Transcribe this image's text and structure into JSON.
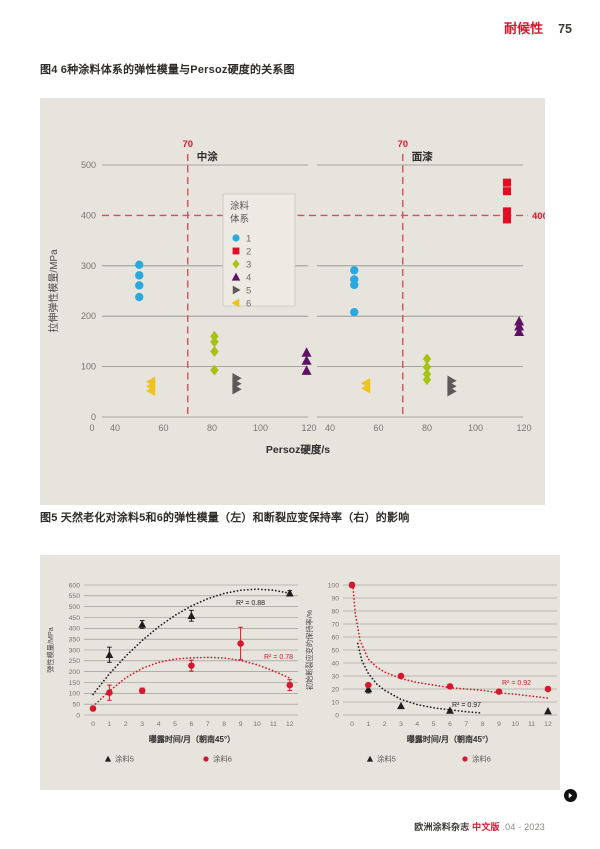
{
  "page": {
    "header": {
      "section": "耐候性",
      "page_number": "75"
    },
    "fig4_title": "图4 6种涂料体系的弹性模量与Persoz硬度的关系图",
    "fig5_title": "图5 天然老化对涂料5和6的弹性模量（左）和断裂应变保持率（右）的影响",
    "footer": {
      "journal": "欧洲涂料杂志",
      "edition": "中文版",
      "issue": ".04 - 2023"
    },
    "next_button_icon": "arrow-right",
    "colors": {
      "accent_red": "#d6182f",
      "dashed_red": "#d4505a",
      "chart_bg": "#e6e4dc",
      "grid": "#8f8e88",
      "tick_text": "#76756f",
      "dark_text": "#2e2d2b",
      "legend_bg": "#eceae2",
      "legend_border": "#c8c6bd"
    }
  },
  "chart_data": [
    {
      "id": "fig4",
      "type": "scatter",
      "xlabel": "Persoz硬度/s",
      "ylabel": "拉伸弹性模量/MPa",
      "ylim": [
        0,
        500
      ],
      "yticks": [
        0,
        100,
        200,
        300,
        400,
        500
      ],
      "hline": {
        "y": 400,
        "label": "400"
      },
      "panels": [
        {
          "title": "中涂",
          "xticks": [
            0,
            40,
            60,
            80,
            100,
            120
          ],
          "vline_x": 70,
          "vline_label": "70"
        },
        {
          "title": "面漆",
          "xticks": [
            40,
            60,
            80,
            100,
            120
          ],
          "vline_x": 70,
          "vline_label": "70"
        }
      ],
      "legend_title_lines": [
        "涂料",
        "体系"
      ],
      "series": [
        {
          "name": "1",
          "marker": "circle",
          "color": "#2aa9de",
          "panel_points": [
            [
              [
                50,
                302
              ],
              [
                50,
                281
              ],
              [
                50,
                261
              ],
              [
                50,
                238
              ]
            ],
            [
              [
                50,
                291
              ],
              [
                50,
                273
              ],
              [
                50,
                262
              ],
              [
                50,
                208
              ]
            ]
          ]
        },
        {
          "name": "2",
          "marker": "square",
          "color": "#e20d23",
          "panel_points": [
            [],
            [
              [
                113,
                465
              ],
              [
                113,
                448
              ],
              [
                113,
                408
              ],
              [
                113,
                392
              ]
            ]
          ]
        },
        {
          "name": "3",
          "marker": "diamond",
          "color": "#a6c313",
          "panel_points": [
            [
              [
                81,
                160
              ],
              [
                81,
                149
              ],
              [
                81,
                130
              ],
              [
                81,
                93
              ]
            ],
            [
              [
                80,
                115
              ],
              [
                80,
                99
              ],
              [
                80,
                85
              ],
              [
                80,
                74
              ]
            ]
          ]
        },
        {
          "name": "4",
          "marker": "triangle-up",
          "color": "#5e1263",
          "panel_points": [
            [
              [
                119,
                128
              ],
              [
                119,
                112
              ],
              [
                119,
                92
              ]
            ],
            [
              [
                118,
                190
              ],
              [
                118,
                180
              ],
              [
                118,
                169
              ]
            ]
          ]
        },
        {
          "name": "5",
          "marker": "triangle-right",
          "color": "#5b5a58",
          "panel_points": [
            [
              [
                90,
                77
              ],
              [
                90,
                66
              ],
              [
                90,
                55
              ]
            ],
            [
              [
                90,
                72
              ],
              [
                90,
                61
              ],
              [
                90,
                51
              ]
            ]
          ]
        },
        {
          "name": "6",
          "marker": "triangle-left",
          "color": "#eec31c",
          "panel_points": [
            [
              [
                55,
                70
              ],
              [
                55,
                61
              ],
              [
                55,
                52
              ]
            ],
            [
              [
                55,
                67
              ],
              [
                55,
                57
              ]
            ]
          ]
        }
      ]
    },
    {
      "id": "fig5-left",
      "type": "scatter",
      "xlabel": "曝露时间/月（朝南45°）",
      "ylabel": "弹性模量/MPa",
      "ylim": [
        0,
        600
      ],
      "ytick_step": 50,
      "xticks": [
        0,
        1,
        2,
        3,
        4,
        5,
        6,
        7,
        8,
        9,
        10,
        11,
        12
      ],
      "series": [
        {
          "name": "涂料5",
          "marker": "triangle-up",
          "color": "#1d1d1b",
          "r2": "R² = 0.88",
          "points": [
            [
              1,
              278
            ],
            [
              3,
              418
            ],
            [
              6,
              458
            ],
            [
              12,
              562
            ]
          ],
          "errors": [
            35,
            18,
            25,
            12
          ],
          "trend": [
            [
              0,
              95
            ],
            [
              1,
              190
            ],
            [
              2,
              272
            ],
            [
              3,
              344
            ],
            [
              4,
              407
            ],
            [
              5,
              460
            ],
            [
              6,
              503
            ],
            [
              7,
              537
            ],
            [
              8,
              561
            ],
            [
              9,
              576
            ],
            [
              10,
              581
            ],
            [
              11,
              576
            ],
            [
              12,
              562
            ]
          ]
        },
        {
          "name": "涂料6",
          "marker": "circle",
          "color": "#d6182f",
          "r2": "R² = 0.78",
          "points": [
            [
              0,
              30
            ],
            [
              1,
              103
            ],
            [
              3,
              112
            ],
            [
              6,
              228
            ],
            [
              9,
              330
            ],
            [
              12,
              138
            ]
          ],
          "errors": [
            8,
            35,
            12,
            25,
            75,
            25
          ],
          "trend": [
            [
              0,
              40
            ],
            [
              1,
              110
            ],
            [
              2,
              172
            ],
            [
              3,
              215
            ],
            [
              4,
              243
            ],
            [
              5,
              258
            ],
            [
              6,
              264
            ],
            [
              7,
              266
            ],
            [
              8,
              263
            ],
            [
              9,
              252
            ],
            [
              10,
              232
            ],
            [
              11,
              204
            ],
            [
              12,
              170
            ]
          ]
        }
      ]
    },
    {
      "id": "fig5-right",
      "type": "scatter",
      "xlabel": "曝露时间/月（朝南45°）",
      "ylabel": "初始断裂应变的保持率/%",
      "ylim": [
        0,
        100
      ],
      "ytick_step": 10,
      "xticks": [
        0,
        1,
        2,
        3,
        4,
        5,
        6,
        7,
        8,
        9,
        10,
        11,
        12
      ],
      "series": [
        {
          "name": "涂料5",
          "marker": "triangle-up",
          "color": "#1d1d1b",
          "r2": "R² = 0.97",
          "points": [
            [
              1,
              20
            ],
            [
              3,
              7
            ],
            [
              6,
              3.5
            ],
            [
              12,
              3
            ]
          ],
          "errors": [
            3,
            0,
            0,
            0
          ],
          "trend": [
            [
              0.35,
              55
            ],
            [
              0.6,
              42
            ],
            [
              1,
              32
            ],
            [
              1.5,
              24
            ],
            [
              2,
              19
            ],
            [
              3,
              12
            ],
            [
              4,
              8
            ],
            [
              5,
              5.5
            ],
            [
              6,
              4
            ],
            [
              7,
              2.5
            ],
            [
              8,
              1.5
            ]
          ]
        },
        {
          "name": "涂料6",
          "marker": "circle",
          "color": "#d6182f",
          "r2": "R² = 0.92",
          "points": [
            [
              0,
              100
            ],
            [
              1,
              23
            ],
            [
              3,
              30
            ],
            [
              6,
              22
            ],
            [
              9,
              18
            ],
            [
              12,
              20
            ]
          ],
          "errors": [
            2,
            0,
            0,
            0,
            0,
            0
          ],
          "trend": [
            [
              0.05,
              100
            ],
            [
              0.2,
              78
            ],
            [
              0.5,
              57
            ],
            [
              1,
              43
            ],
            [
              1.5,
              37
            ],
            [
              2,
              33
            ],
            [
              3,
              28
            ],
            [
              4,
              25
            ],
            [
              5,
              23
            ],
            [
              6,
              21
            ],
            [
              7,
              20
            ],
            [
              8,
              19
            ],
            [
              9,
              17
            ],
            [
              10,
              16
            ],
            [
              11,
              14.5
            ],
            [
              12,
              13
            ]
          ]
        }
      ]
    }
  ]
}
